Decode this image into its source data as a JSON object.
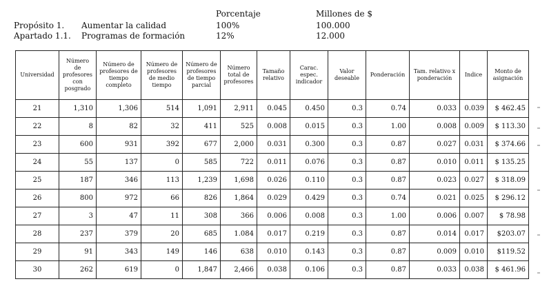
{
  "header": {
    "col_percent": "Porcentaje",
    "col_millions": "Millones de $",
    "row1": {
      "label": "Propósito 1.",
      "desc": "Aumentar la calidad",
      "percent": "100%",
      "amount": "100.000"
    },
    "row2": {
      "label": "Apartado 1.1.",
      "desc": "Programas de formación",
      "percent": "12%",
      "amount": "12.000"
    }
  },
  "table": {
    "columns": [
      "Universidad",
      "Número de profesores con posgrado",
      "Número de profesores de tiempo completo",
      "Número de profesores de medio tiempo",
      "Número de profesores de tiempo parcial",
      "Número total de profesores",
      "Tamaño relativo",
      "Carac. espec. indicador",
      "Valor deseable",
      "Ponderación",
      "Tam. relativo x ponderación",
      "Indice",
      "Monto de asignación"
    ],
    "rows": [
      [
        "21",
        "1,310",
        "1,306",
        "514",
        "1,091",
        "2,911",
        "0.045",
        "0.450",
        "0.3",
        "0.74",
        "0.033",
        "0.039",
        "$ 462.45"
      ],
      [
        "22",
        "8",
        "82",
        "32",
        "411",
        "525",
        "0.008",
        "0.015",
        "0.3",
        "1.00",
        "0.008",
        "0.009",
        "$ 113.30"
      ],
      [
        "23",
        "600",
        "931",
        "392",
        "677",
        "2,000",
        "0.031",
        "0.300",
        "0.3",
        "0.87",
        "0.027",
        "0.031",
        "$ 374.66"
      ],
      [
        "24",
        "55",
        "137",
        "0",
        "585",
        "722",
        "0.011",
        "0.076",
        "0.3",
        "0.87",
        "0.010",
        "0.011",
        "$ 135.25"
      ],
      [
        "25",
        "187",
        "346",
        "113",
        "1,239",
        "1,698",
        "0.026",
        "0.110",
        "0.3",
        "0.87",
        "0.023",
        "0.027",
        "$ 318.09"
      ],
      [
        "26",
        "800",
        "972",
        "66",
        "826",
        "1,864",
        "0.029",
        "0.429",
        "0.3",
        "0.74",
        "0.021",
        "0.025",
        "$ 296.12"
      ],
      [
        "27",
        "3",
        "47",
        "11",
        "308",
        "366",
        "0.006",
        "0.008",
        "0.3",
        "1.00",
        "0.006",
        "0.007",
        "$ 78.98"
      ],
      [
        "28",
        "237",
        "379",
        "20",
        "685",
        "1.084",
        "0.017",
        "0.219",
        "0.3",
        "0.87",
        "0.014",
        "0.017",
        "$203.07"
      ],
      [
        "29",
        "91",
        "343",
        "149",
        "146",
        "638",
        "0.010",
        "0.143",
        "0.3",
        "0.87",
        "0.009",
        "0.010",
        "$119.52"
      ],
      [
        "30",
        "262",
        "619",
        "0",
        "1,847",
        "2,466",
        "0.038",
        "0.106",
        "0.3",
        "0.87",
        "0.033",
        "0.038",
        "$ 461.96"
      ]
    ]
  }
}
